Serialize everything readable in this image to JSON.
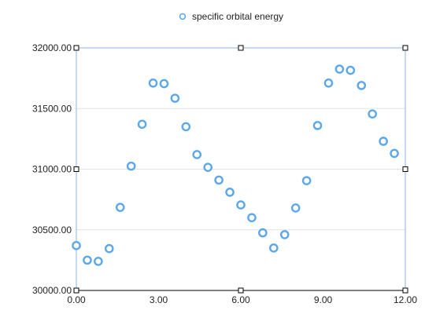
{
  "chart_data": {
    "type": "scatter",
    "title": "",
    "xlabel": "",
    "ylabel": "",
    "legend": {
      "position": "top-center",
      "entries": [
        "specific orbital energy"
      ]
    },
    "xlim": [
      0,
      12
    ],
    "ylim": [
      30000,
      32000
    ],
    "grid": {
      "x": false,
      "y": true
    },
    "x_ticks": [
      "0.00",
      "3.00",
      "6.00",
      "9.00",
      "12.00"
    ],
    "x_tick_values": [
      0,
      3,
      6,
      9,
      12
    ],
    "y_ticks": [
      "30000.00",
      "30500.00",
      "31000.00",
      "31500.00",
      "32000.00"
    ],
    "y_tick_values": [
      30000,
      30500,
      31000,
      31500,
      32000
    ],
    "colors": {
      "marker": "#5aa7ec",
      "frame": "#8fb3e3",
      "grid": "#e3e3e3"
    },
    "series": [
      {
        "name": "specific orbital energy",
        "x": [
          0.0,
          0.4,
          0.8,
          1.2,
          1.6,
          2.0,
          2.4,
          2.8,
          3.2,
          3.6,
          4.0,
          4.4,
          4.8,
          5.2,
          5.6,
          6.0,
          6.4,
          6.8,
          7.2,
          7.6,
          8.0,
          8.4,
          8.8,
          9.2,
          9.6,
          10.0,
          10.4,
          10.8,
          11.2,
          11.6
        ],
        "y": [
          30370,
          30250,
          30240,
          30345,
          30685,
          31025,
          31370,
          31710,
          31705,
          31585,
          31350,
          31120,
          31015,
          30910,
          30810,
          30705,
          30600,
          30475,
          30350,
          30460,
          30680,
          30905,
          31360,
          31710,
          31825,
          31815,
          31690,
          31455,
          31230,
          31130
        ]
      }
    ]
  }
}
